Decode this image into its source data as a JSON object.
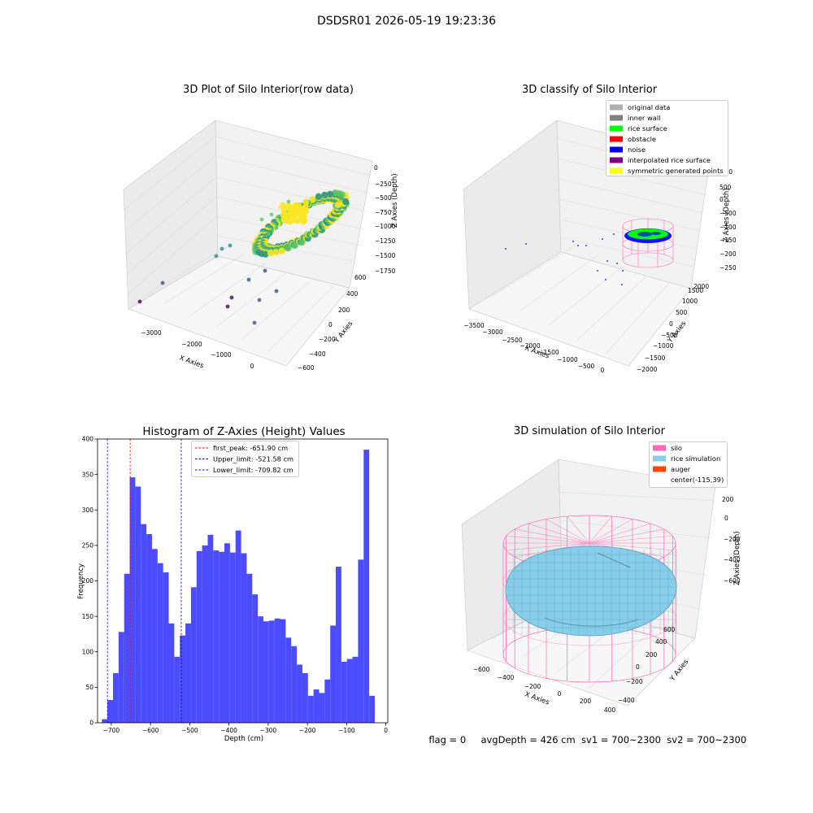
{
  "figure": {
    "suptitle": "DSDSR01 2026-05-19 19:23:36",
    "status_line": {
      "flag": "flag = 0",
      "avg_depth": "avgDepth = 426 cm",
      "sv1": "sv1 = 700~2300",
      "sv2": "sv2 = 700~2300"
    }
  },
  "chart_data": [
    {
      "id": "raw",
      "type": "scatter",
      "title": "3D Plot of Silo Interior(row data)",
      "xlabel": "X Axies",
      "ylabel": "Y Axies",
      "zlabel": "Z Axies (Depth)",
      "x_ticks": [
        "−3000",
        "−2000",
        "−1000",
        "0"
      ],
      "y_ticks": [
        "−600",
        "−400",
        "−200",
        "0",
        "200",
        "400",
        "600"
      ],
      "z_ticks": [
        "0",
        "−250",
        "−500",
        "−750",
        "−1000",
        "−1250",
        "−1500",
        "−1750"
      ],
      "colormap": [
        "#440154",
        "#3b528b",
        "#21918c",
        "#5ec962",
        "#fde725"
      ]
    },
    {
      "id": "classify",
      "type": "scatter",
      "title": "3D classify of Silo Interior",
      "xlabel": "X Axies",
      "ylabel": "Y Axies",
      "zlabel": "Z Axies (Depth)",
      "x_ticks": [
        "−3500",
        "−3000",
        "−2500",
        "−2000",
        "−1500",
        "−1000",
        "−500",
        "0"
      ],
      "y_ticks": [
        "−2000",
        "−1500",
        "−1000",
        "−500",
        "0",
        "500",
        "1000",
        "1500",
        "2000"
      ],
      "z_ticks": [
        "1000",
        "500",
        "0",
        "−500",
        "−1000",
        "−1500",
        "−2000",
        "−2500"
      ],
      "legend": [
        {
          "label": "original data",
          "color": "#b0b0b0"
        },
        {
          "label": "inner wall",
          "color": "#808080"
        },
        {
          "label": "rice surface",
          "color": "#00ff00"
        },
        {
          "label": "obstacle",
          "color": "#ff0000"
        },
        {
          "label": "noise",
          "color": "#0000ff"
        },
        {
          "label": "interpolated rice surface",
          "color": "#800080"
        },
        {
          "label": "symmetric generated points",
          "color": "#ffff00"
        }
      ]
    },
    {
      "id": "histogram",
      "type": "bar",
      "title": "Histogram of Z-Axies (Height) Values",
      "xlabel": "Depth (cm)",
      "ylabel": "Frequency",
      "xlim": [
        -735,
        5
      ],
      "ylim": [
        0,
        400
      ],
      "x_ticks": [
        -700,
        -600,
        -500,
        -400,
        -300,
        -200,
        -100,
        0
      ],
      "x_tick_labels": [
        "−700",
        "−600",
        "−500",
        "−400",
        "−300",
        "−200",
        "−100",
        "0"
      ],
      "y_ticks": [
        0,
        50,
        100,
        150,
        200,
        250,
        300,
        350,
        400
      ],
      "bar_color": "#4b4bff",
      "bin_edges_start": -724,
      "bin_width": 14.2,
      "values": [
        5,
        32,
        70,
        128,
        210,
        346,
        333,
        280,
        266,
        245,
        225,
        212,
        140,
        93,
        123,
        140,
        191,
        242,
        250,
        265,
        243,
        241,
        253,
        240,
        271,
        239,
        210,
        181,
        150,
        143,
        144,
        147,
        146,
        120,
        108,
        82,
        70,
        38,
        47,
        42,
        61,
        137,
        220,
        86,
        90,
        93,
        230,
        385,
        38
      ],
      "lines": [
        {
          "label": "first_peak: -651.90 cm",
          "x": -651.9,
          "color": "#ff0000"
        },
        {
          "label": "Upper_limit: -521.58 cm",
          "x": -521.58,
          "color": "#00008b"
        },
        {
          "label": "Lower_limit: -709.82 cm",
          "x": -709.82,
          "color": "#0000ff"
        }
      ]
    },
    {
      "id": "simulation",
      "type": "surface",
      "title": "3D simulation of Silo Interior",
      "xlabel": "X Axies",
      "ylabel": "Y Axies",
      "zlabel": "Z Axies (Depth)",
      "x_ticks": [
        "−600",
        "−400",
        "−200",
        "0",
        "200",
        "400"
      ],
      "y_ticks": [
        "−400",
        "−200",
        "0",
        "200",
        "400",
        "600"
      ],
      "z_ticks": [
        "200",
        "0",
        "−200",
        "−400",
        "−600"
      ],
      "legend": [
        {
          "label": "silo",
          "color": "#ff69b4"
        },
        {
          "label": "rice simulation",
          "color": "#87ceeb"
        },
        {
          "label": "auger",
          "color": "#ff4500"
        },
        {
          "label": "center(-115,39)",
          "color": ""
        }
      ]
    }
  ]
}
